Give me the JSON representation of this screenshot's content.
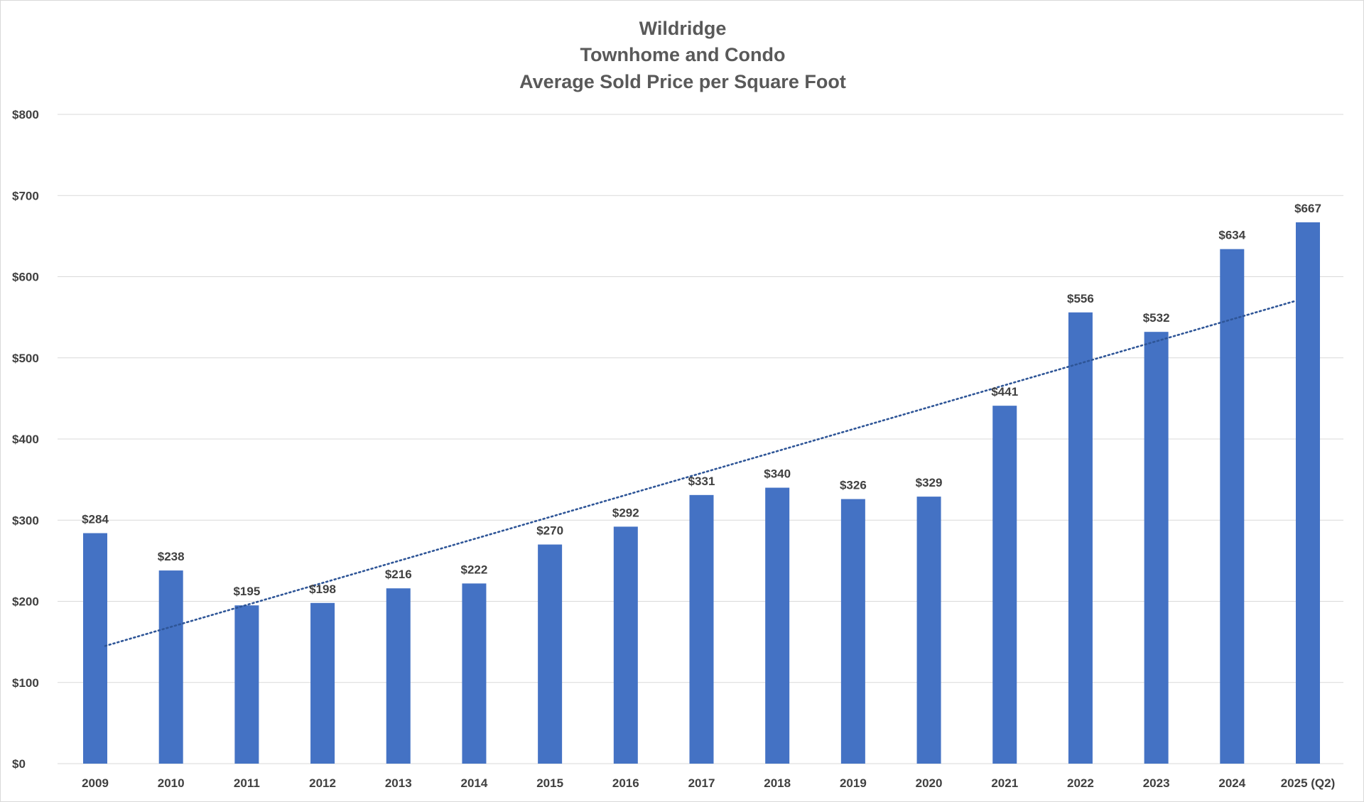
{
  "chart_data": {
    "type": "bar",
    "title_lines": [
      "Wildridge",
      "Townhome and Condo",
      "Average Sold Price per Square Foot"
    ],
    "categories": [
      "2009",
      "2010",
      "2011",
      "2012",
      "2013",
      "2014",
      "2015",
      "2016",
      "2017",
      "2018",
      "2019",
      "2020",
      "2021",
      "2022",
      "2023",
      "2024",
      "2025 (Q2)"
    ],
    "values": [
      284,
      238,
      195,
      198,
      216,
      222,
      270,
      292,
      331,
      340,
      326,
      329,
      441,
      556,
      532,
      634,
      667
    ],
    "data_labels": [
      "$284",
      "$238",
      "$195",
      "$198",
      "$216",
      "$222",
      "$270",
      "$292",
      "$331",
      "$340",
      "$326",
      "$329",
      "$441",
      "$556",
      "$532",
      "$634",
      "$667"
    ],
    "y_ticks": [
      0,
      100,
      200,
      300,
      400,
      500,
      600,
      700,
      800
    ],
    "y_tick_labels": [
      "$0",
      "$100",
      "$200",
      "$300",
      "$400",
      "$500",
      "$600",
      "$700",
      "$800"
    ],
    "ylim": [
      0,
      800
    ],
    "xlabel": "",
    "ylabel": "",
    "grid": true,
    "legend": "none",
    "trendline": {
      "type": "linear",
      "style": "dotted",
      "start_value": 145,
      "end_value": 570
    },
    "colors": {
      "bar": "#4472C4",
      "trendline": "#2E5597",
      "gridline": "#d9d9d9",
      "text": "#404040",
      "title": "#595959"
    }
  }
}
